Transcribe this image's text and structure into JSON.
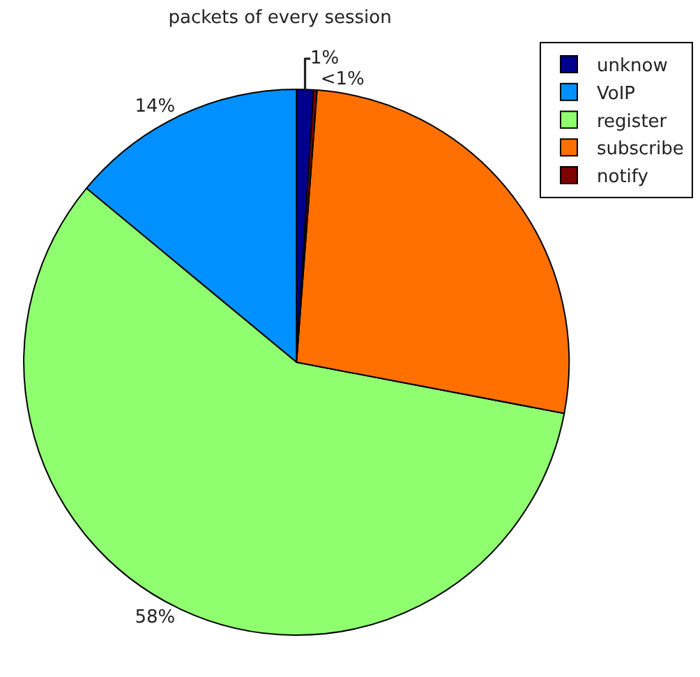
{
  "chart_data": {
    "type": "pie",
    "title": "packets of every session",
    "categories": [
      "unknow",
      "VoIP",
      "register",
      "subscribe",
      "notify"
    ],
    "values": [
      1,
      14,
      58,
      26.8,
      0.2
    ],
    "colors": [
      "#00008f",
      "#0090ff",
      "#8fff70",
      "#ff7000",
      "#800000"
    ],
    "value_labels": [
      "1%",
      "14%",
      "58%",
      null,
      "<1%"
    ],
    "legend": "top right"
  }
}
